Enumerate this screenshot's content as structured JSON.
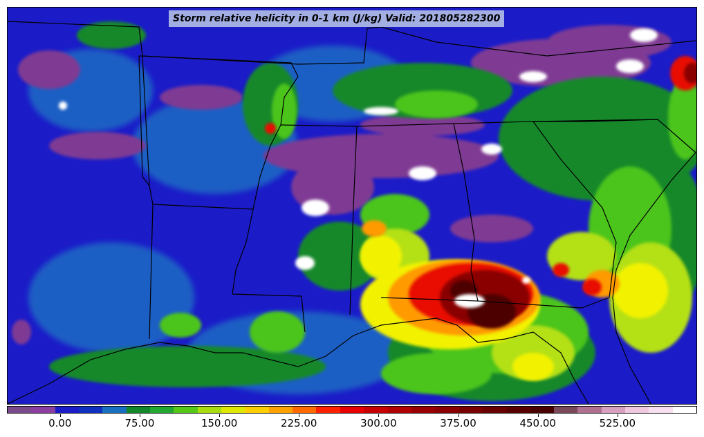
{
  "title": "Storm relative helicity in 0-1 km (J/kg) Valid: 201805282300",
  "colorbar": {
    "colors": [
      "#7a4a8a",
      "#8b3fa0",
      "#1b1bc8",
      "#1030c0",
      "#1a70c0",
      "#13882a",
      "#22a832",
      "#55c818",
      "#a8dd10",
      "#e0e800",
      "#ffd000",
      "#ffa200",
      "#ff6a00",
      "#ff2000",
      "#e80000",
      "#c80000",
      "#b00000",
      "#9a0000",
      "#880000",
      "#780000",
      "#680000",
      "#580000",
      "#480000",
      "#7a4a5a",
      "#b07090",
      "#d8a0c0",
      "#f0c8e0",
      "#f8e0f0",
      "#ffffff"
    ],
    "tick_labels": [
      "0.00",
      "75.00",
      "150.00",
      "225.00",
      "300.00",
      "375.00",
      "450.00",
      "525.00"
    ],
    "tick_values": [
      0,
      75,
      150,
      225,
      300,
      375,
      450,
      525
    ],
    "range": [
      -50,
      600
    ]
  },
  "palette": {
    "purple": "#7f3a93",
    "blue": "#1b1bc8",
    "midblue": "#1e5fc4",
    "green": "#13882a",
    "ltgreen": "#4bc41a",
    "yellowgreen": "#b4e014",
    "yellow": "#f2f200",
    "orange": "#ff9a00",
    "red": "#e81000",
    "darkred": "#8a0000",
    "maroon": "#4d0000",
    "white": "#ffffff"
  }
}
